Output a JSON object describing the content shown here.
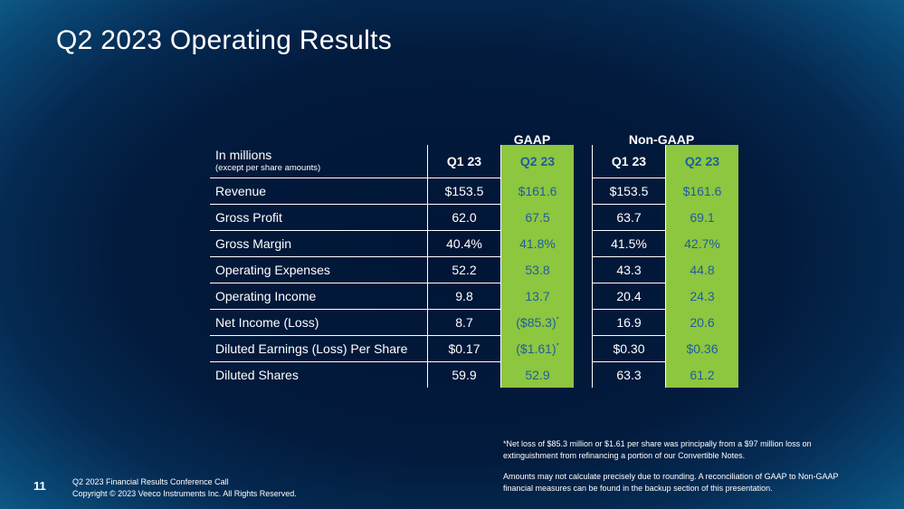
{
  "title": "Q2 2023 Operating Results",
  "groups": {
    "gaap": "GAAP",
    "non_gaap": "Non-GAAP"
  },
  "table": {
    "header_label": "In millions",
    "header_sublabel": "(except per share amounts)",
    "columns": [
      "Q1 23",
      "Q2 23",
      "Q1 23",
      "Q2 23"
    ],
    "rows": [
      {
        "label": "Revenue",
        "values": [
          "$153.5",
          "$161.6",
          "$153.5",
          "$161.6"
        ]
      },
      {
        "label": "Gross Profit",
        "values": [
          "62.0",
          "67.5",
          "63.7",
          "69.1"
        ]
      },
      {
        "label": "Gross Margin",
        "values": [
          "40.4%",
          "41.8%",
          "41.5%",
          "42.7%"
        ]
      },
      {
        "label": "Operating Expenses",
        "values": [
          "52.2",
          "53.8",
          "43.3",
          "44.8"
        ]
      },
      {
        "label": "Operating Income",
        "values": [
          "9.8",
          "13.7",
          "20.4",
          "24.3"
        ]
      },
      {
        "label": "Net Income (Loss)",
        "values": [
          "8.7",
          "($85.3)",
          "16.9",
          "20.6"
        ],
        "marks": [
          "",
          "*",
          "",
          ""
        ]
      },
      {
        "label": "Diluted Earnings (Loss) Per Share",
        "values": [
          "$0.17",
          "($1.61)",
          "$0.30",
          "$0.36"
        ],
        "marks": [
          "",
          "*",
          "",
          ""
        ]
      },
      {
        "label": "Diluted Shares",
        "values": [
          "59.9",
          "52.9",
          "63.3",
          "61.2"
        ]
      }
    ]
  },
  "footnotes": {
    "note1": "*Net loss of $85.3 million or $1.61 per share was principally from a $97 million loss on extinguishment from refinancing a portion of our Convertible Notes.",
    "note2": "Amounts may not calculate precisely due to rounding.  A reconciliation of GAAP to Non-GAAP financial measures can be found in the backup section of this presentation."
  },
  "footer": {
    "page_number": "11",
    "line1": "Q2 2023 Financial Results Conference Call",
    "line2": "Copyright © 2023 Veeco Instruments Inc. All Rights Reserved."
  },
  "colors": {
    "highlight": "#8dc63f",
    "highlight_text": "#1f5d9e"
  }
}
